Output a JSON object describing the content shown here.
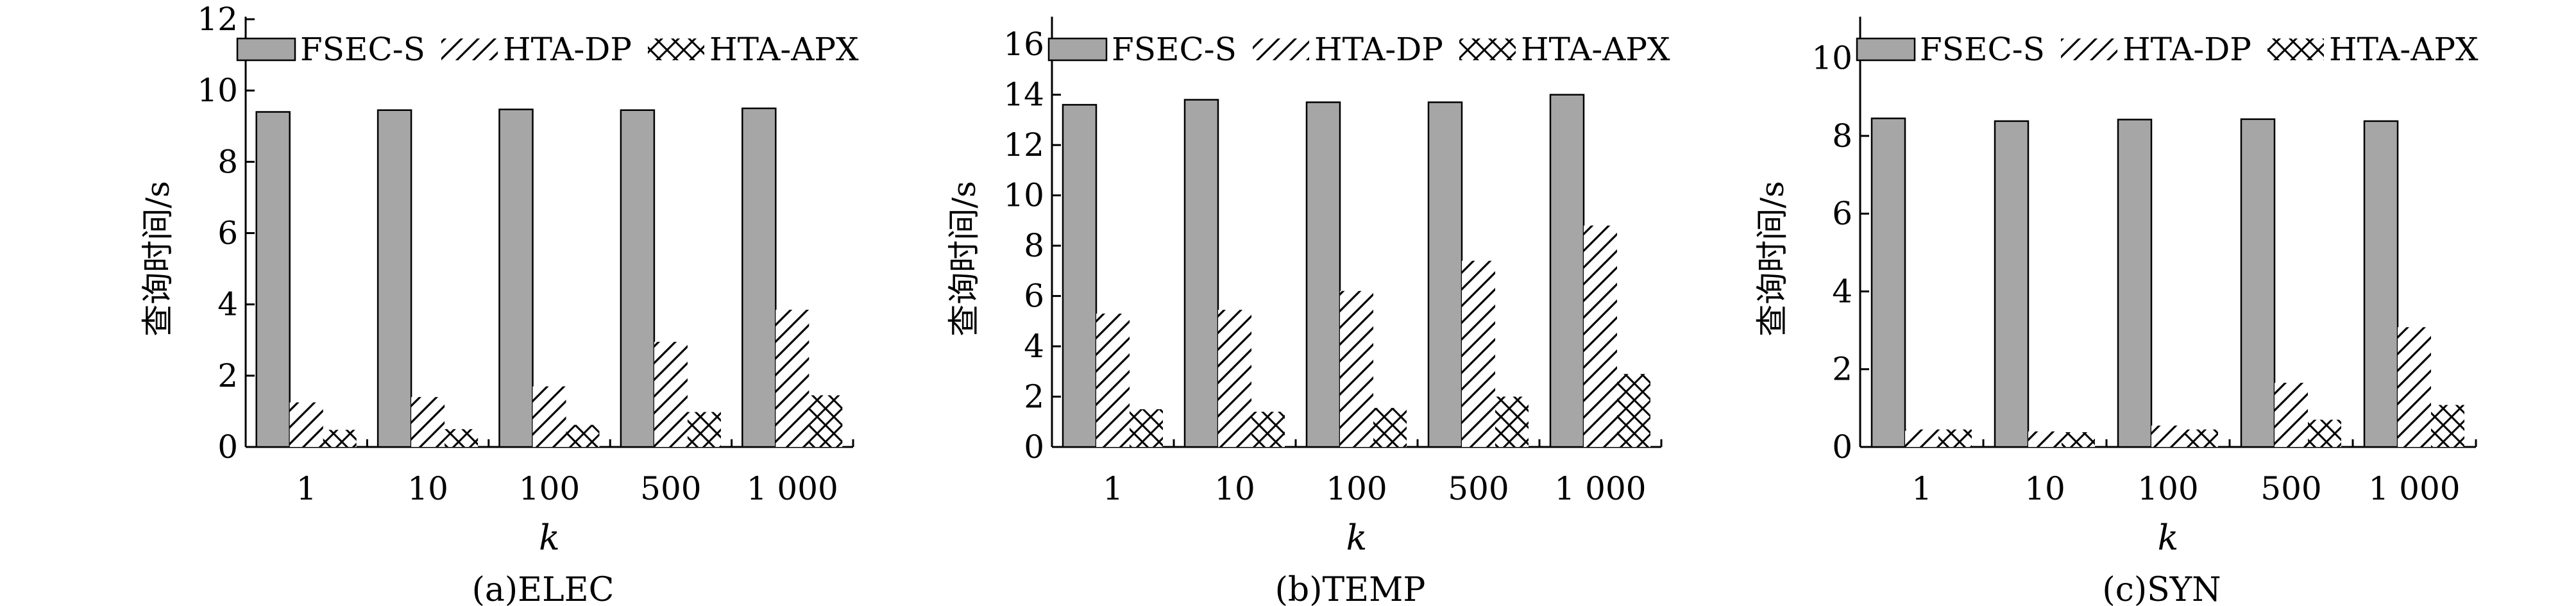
{
  "chart_data": [
    {
      "type": "bar",
      "caption": "(a)ELEC",
      "xlabel": "k",
      "ylabel": "查询时间/s",
      "categories": [
        "1",
        "10",
        "100",
        "500",
        "1 000"
      ],
      "ylim": [
        0,
        12
      ],
      "yticks": [
        "0",
        "2",
        "4",
        "6",
        "8",
        "10",
        "12"
      ],
      "legend_position": "top",
      "series": [
        {
          "name": "FSEC-S",
          "values": [
            9.4,
            9.45,
            9.47,
            9.45,
            9.5
          ]
        },
        {
          "name": "HTA-DP",
          "values": [
            1.25,
            1.4,
            1.7,
            2.95,
            3.85
          ]
        },
        {
          "name": "HTA-APX",
          "values": [
            0.48,
            0.5,
            0.62,
            0.98,
            1.45
          ]
        }
      ]
    },
    {
      "type": "bar",
      "caption": "(b)TEMP",
      "xlabel": "k",
      "ylabel": "查询时间/s",
      "categories": [
        "1",
        "10",
        "100",
        "500",
        "1 000"
      ],
      "ylim": [
        0,
        17
      ],
      "yticks": [
        "0",
        "2",
        "4",
        "6",
        "8",
        "10",
        "12",
        "14",
        "16"
      ],
      "legend_position": "top",
      "series": [
        {
          "name": "FSEC-S",
          "values": [
            13.6,
            13.8,
            13.7,
            13.7,
            14.0
          ]
        },
        {
          "name": "HTA-DP",
          "values": [
            5.3,
            5.45,
            6.2,
            7.4,
            8.8
          ]
        },
        {
          "name": "HTA-APX",
          "values": [
            1.5,
            1.4,
            1.55,
            2.0,
            2.9
          ]
        }
      ]
    },
    {
      "type": "bar",
      "caption": "(c)SYN",
      "xlabel": "k",
      "ylabel": "查询时间/s",
      "categories": [
        "1",
        "10",
        "100",
        "500",
        "1 000"
      ],
      "ylim": [
        0,
        11
      ],
      "yticks": [
        "0",
        "2",
        "4",
        "6",
        "8",
        "10"
      ],
      "legend_position": "top",
      "series": [
        {
          "name": "FSEC-S",
          "values": [
            8.45,
            8.38,
            8.42,
            8.43,
            8.38
          ]
        },
        {
          "name": "HTA-DP",
          "values": [
            0.45,
            0.4,
            0.55,
            1.65,
            3.08
          ]
        },
        {
          "name": "HTA-APX",
          "values": [
            0.45,
            0.38,
            0.45,
            0.7,
            1.08
          ]
        }
      ]
    }
  ],
  "colors": {
    "fsec_fill": "#a6a6a6",
    "outline": "#000000",
    "pattern_fill": "#ffffff"
  }
}
